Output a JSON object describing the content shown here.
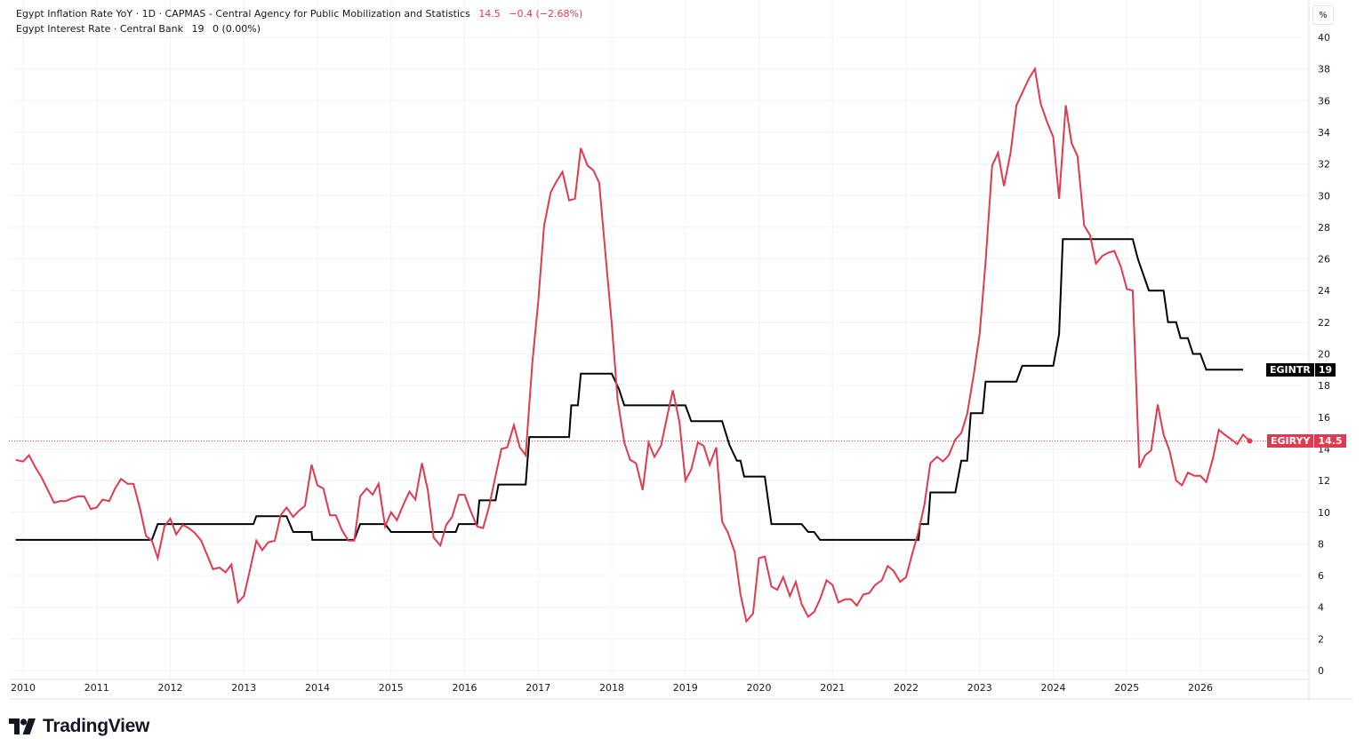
{
  "legend": {
    "inflation": {
      "title": "Egypt Inflation Rate YoY · 1D · CAPMAS - Central Agency for Public Mobilization and Statistics",
      "value": "14.5",
      "change": "−0.4 (−2.68%)"
    },
    "interest": {
      "title": "Egypt Interest Rate · Central Bank",
      "value": "19",
      "change": "0 (0.00%)"
    }
  },
  "unit_label": "%",
  "badges": {
    "interest": {
      "ticker": "EGINTR",
      "value": "19"
    },
    "inflation": {
      "ticker": "EGIRYY",
      "value": "14.5"
    }
  },
  "brand": {
    "name": "TradingView"
  },
  "colors": {
    "inflation": "#e03a4e",
    "interest": "#000000",
    "grid": "#f0f3fa",
    "axis_text": "#131722"
  },
  "chart_data": {
    "type": "line",
    "xlabel": "",
    "ylabel": "",
    "ylim": [
      0,
      40
    ],
    "xlim": [
      2009.9,
      2027.2
    ],
    "y_ticks": [
      "0",
      "2",
      "4",
      "6",
      "8",
      "10",
      "12",
      "14",
      "16",
      "18",
      "20",
      "22",
      "24",
      "26",
      "28",
      "30",
      "32",
      "34",
      "36",
      "38",
      "40"
    ],
    "x_ticks": [
      "2010",
      "2011",
      "2012",
      "2013",
      "2014",
      "2015",
      "2016",
      "2017",
      "2018",
      "2019",
      "2020",
      "2021",
      "2022",
      "2023",
      "2024",
      "2025",
      "2026"
    ],
    "grid": true,
    "series": [
      {
        "name": "EGIRYY",
        "step": false,
        "points": [
          [
            2009.9,
            13.3
          ],
          [
            2010.0,
            13.2
          ],
          [
            2010.08,
            13.6
          ],
          [
            2010.17,
            12.8
          ],
          [
            2010.25,
            12.2
          ],
          [
            2010.42,
            10.6
          ],
          [
            2010.5,
            10.7
          ],
          [
            2010.58,
            10.7
          ],
          [
            2010.67,
            10.9
          ],
          [
            2010.75,
            11.0
          ],
          [
            2010.83,
            11.0
          ],
          [
            2010.92,
            10.2
          ],
          [
            2011.0,
            10.3
          ],
          [
            2011.08,
            10.8
          ],
          [
            2011.17,
            10.7
          ],
          [
            2011.25,
            11.5
          ],
          [
            2011.33,
            12.1
          ],
          [
            2011.42,
            11.8
          ],
          [
            2011.5,
            11.8
          ],
          [
            2011.58,
            10.4
          ],
          [
            2011.67,
            8.5
          ],
          [
            2011.75,
            8.2
          ],
          [
            2011.83,
            7.1
          ],
          [
            2011.92,
            9.1
          ],
          [
            2012.0,
            9.6
          ],
          [
            2012.08,
            8.6
          ],
          [
            2012.17,
            9.2
          ],
          [
            2012.25,
            9.0
          ],
          [
            2012.33,
            8.7
          ],
          [
            2012.42,
            8.2
          ],
          [
            2012.5,
            7.3
          ],
          [
            2012.58,
            6.4
          ],
          [
            2012.67,
            6.5
          ],
          [
            2012.75,
            6.2
          ],
          [
            2012.83,
            6.7
          ],
          [
            2012.92,
            4.3
          ],
          [
            2013.0,
            4.7
          ],
          [
            2013.08,
            6.3
          ],
          [
            2013.17,
            8.2
          ],
          [
            2013.25,
            7.6
          ],
          [
            2013.33,
            8.1
          ],
          [
            2013.42,
            8.2
          ],
          [
            2013.5,
            9.8
          ],
          [
            2013.58,
            10.3
          ],
          [
            2013.67,
            9.7
          ],
          [
            2013.75,
            10.1
          ],
          [
            2013.83,
            10.4
          ],
          [
            2013.92,
            13.0
          ],
          [
            2014.0,
            11.7
          ],
          [
            2014.08,
            11.5
          ],
          [
            2014.17,
            9.8
          ],
          [
            2014.25,
            9.8
          ],
          [
            2014.33,
            8.9
          ],
          [
            2014.42,
            8.2
          ],
          [
            2014.5,
            8.2
          ],
          [
            2014.58,
            11.0
          ],
          [
            2014.67,
            11.5
          ],
          [
            2014.75,
            11.1
          ],
          [
            2014.83,
            11.8
          ],
          [
            2014.92,
            9.1
          ],
          [
            2015.0,
            10.0
          ],
          [
            2015.08,
            9.5
          ],
          [
            2015.17,
            10.5
          ],
          [
            2015.25,
            11.3
          ],
          [
            2015.33,
            10.8
          ],
          [
            2015.42,
            13.1
          ],
          [
            2015.5,
            11.4
          ],
          [
            2015.58,
            8.4
          ],
          [
            2015.67,
            7.9
          ],
          [
            2015.75,
            9.2
          ],
          [
            2015.83,
            9.7
          ],
          [
            2015.92,
            11.1
          ],
          [
            2016.0,
            11.1
          ],
          [
            2016.08,
            10.1
          ],
          [
            2016.17,
            9.1
          ],
          [
            2016.25,
            9.0
          ],
          [
            2016.33,
            10.3
          ],
          [
            2016.42,
            12.3
          ],
          [
            2016.5,
            14.0
          ],
          [
            2016.58,
            14.1
          ],
          [
            2016.67,
            15.5
          ],
          [
            2016.75,
            14.1
          ],
          [
            2016.83,
            13.6
          ],
          [
            2016.92,
            19.4
          ],
          [
            2017.0,
            23.3
          ],
          [
            2017.08,
            28.1
          ],
          [
            2017.17,
            30.2
          ],
          [
            2017.25,
            30.9
          ],
          [
            2017.33,
            31.5
          ],
          [
            2017.42,
            29.7
          ],
          [
            2017.5,
            29.8
          ],
          [
            2017.58,
            33.0
          ],
          [
            2017.67,
            31.9
          ],
          [
            2017.75,
            31.6
          ],
          [
            2017.83,
            30.8
          ],
          [
            2017.92,
            26.0
          ],
          [
            2018.0,
            21.9
          ],
          [
            2018.08,
            17.1
          ],
          [
            2018.17,
            14.4
          ],
          [
            2018.25,
            13.3
          ],
          [
            2018.33,
            13.1
          ],
          [
            2018.42,
            11.4
          ],
          [
            2018.5,
            14.4
          ],
          [
            2018.58,
            13.5
          ],
          [
            2018.67,
            14.2
          ],
          [
            2018.75,
            16.0
          ],
          [
            2018.83,
            17.7
          ],
          [
            2018.92,
            15.7
          ],
          [
            2019.0,
            12.0
          ],
          [
            2019.08,
            12.7
          ],
          [
            2019.17,
            14.4
          ],
          [
            2019.25,
            14.2
          ],
          [
            2019.33,
            13.0
          ],
          [
            2019.42,
            14.1
          ],
          [
            2019.5,
            9.4
          ],
          [
            2019.58,
            8.7
          ],
          [
            2019.67,
            7.5
          ],
          [
            2019.75,
            4.8
          ],
          [
            2019.83,
            3.1
          ],
          [
            2019.92,
            3.6
          ],
          [
            2020.0,
            7.1
          ],
          [
            2020.08,
            7.2
          ],
          [
            2020.17,
            5.3
          ],
          [
            2020.25,
            5.1
          ],
          [
            2020.33,
            5.9
          ],
          [
            2020.42,
            4.7
          ],
          [
            2020.5,
            5.6
          ],
          [
            2020.58,
            4.2
          ],
          [
            2020.67,
            3.4
          ],
          [
            2020.75,
            3.7
          ],
          [
            2020.83,
            4.5
          ],
          [
            2020.92,
            5.7
          ],
          [
            2021.0,
            5.4
          ],
          [
            2021.08,
            4.3
          ],
          [
            2021.17,
            4.5
          ],
          [
            2021.25,
            4.5
          ],
          [
            2021.33,
            4.1
          ],
          [
            2021.42,
            4.8
          ],
          [
            2021.5,
            4.9
          ],
          [
            2021.58,
            5.4
          ],
          [
            2021.67,
            5.7
          ],
          [
            2021.75,
            6.6
          ],
          [
            2021.83,
            6.3
          ],
          [
            2021.92,
            5.6
          ],
          [
            2022.0,
            5.9
          ],
          [
            2022.08,
            7.3
          ],
          [
            2022.17,
            8.8
          ],
          [
            2022.25,
            10.5
          ],
          [
            2022.33,
            13.1
          ],
          [
            2022.42,
            13.5
          ],
          [
            2022.5,
            13.2
          ],
          [
            2022.58,
            13.6
          ],
          [
            2022.67,
            14.6
          ],
          [
            2022.75,
            15.0
          ],
          [
            2022.83,
            16.2
          ],
          [
            2022.92,
            18.7
          ],
          [
            2023.0,
            21.3
          ],
          [
            2023.08,
            25.8
          ],
          [
            2023.17,
            31.9
          ],
          [
            2023.25,
            32.7
          ],
          [
            2023.33,
            30.6
          ],
          [
            2023.42,
            32.7
          ],
          [
            2023.5,
            35.7
          ],
          [
            2023.58,
            36.5
          ],
          [
            2023.67,
            37.4
          ],
          [
            2023.75,
            38.0
          ],
          [
            2023.83,
            35.8
          ],
          [
            2023.92,
            34.6
          ],
          [
            2024.0,
            33.7
          ],
          [
            2024.08,
            29.8
          ],
          [
            2024.17,
            35.7
          ],
          [
            2024.25,
            33.3
          ],
          [
            2024.33,
            32.5
          ],
          [
            2024.42,
            28.1
          ],
          [
            2024.5,
            27.5
          ],
          [
            2024.58,
            25.7
          ],
          [
            2024.67,
            26.2
          ],
          [
            2024.75,
            26.4
          ],
          [
            2024.83,
            26.5
          ],
          [
            2024.92,
            25.5
          ],
          [
            2025.0,
            24.1
          ],
          [
            2025.08,
            24.0
          ],
          [
            2025.17,
            12.8
          ],
          [
            2025.25,
            13.6
          ],
          [
            2025.33,
            13.9
          ],
          [
            2025.42,
            16.8
          ],
          [
            2025.5,
            14.9
          ],
          [
            2025.58,
            13.9
          ],
          [
            2025.67,
            12.0
          ],
          [
            2025.75,
            11.7
          ],
          [
            2025.83,
            12.5
          ],
          [
            2025.92,
            12.3
          ],
          [
            2026.0,
            12.3
          ],
          [
            2026.08,
            11.9
          ],
          [
            2026.17,
            13.4
          ],
          [
            2026.25,
            15.2
          ],
          [
            2026.33,
            14.9
          ],
          [
            2026.42,
            14.6
          ],
          [
            2026.5,
            14.3
          ],
          [
            2026.58,
            14.9
          ],
          [
            2026.67,
            14.5
          ]
        ]
      },
      {
        "name": "EGINTR",
        "step": true,
        "points": [
          [
            2009.9,
            8.25
          ],
          [
            2011.75,
            8.25
          ],
          [
            2011.83,
            9.25
          ],
          [
            2013.13,
            9.25
          ],
          [
            2013.17,
            9.75
          ],
          [
            2013.58,
            9.75
          ],
          [
            2013.67,
            8.75
          ],
          [
            2013.92,
            8.75
          ],
          [
            2013.93,
            8.25
          ],
          [
            2014.5,
            8.25
          ],
          [
            2014.58,
            9.25
          ],
          [
            2014.92,
            9.25
          ],
          [
            2015.0,
            8.75
          ],
          [
            2015.88,
            8.75
          ],
          [
            2015.92,
            9.25
          ],
          [
            2016.17,
            9.25
          ],
          [
            2016.2,
            10.75
          ],
          [
            2016.42,
            10.75
          ],
          [
            2016.46,
            11.75
          ],
          [
            2016.83,
            11.75
          ],
          [
            2016.88,
            14.75
          ],
          [
            2017.42,
            14.75
          ],
          [
            2017.45,
            16.75
          ],
          [
            2017.54,
            16.75
          ],
          [
            2017.58,
            18.75
          ],
          [
            2018.0,
            18.75
          ],
          [
            2018.1,
            17.75
          ],
          [
            2018.17,
            16.75
          ],
          [
            2018.75,
            16.75
          ],
          [
            2019.0,
            16.75
          ],
          [
            2019.08,
            15.75
          ],
          [
            2019.5,
            15.75
          ],
          [
            2019.6,
            14.25
          ],
          [
            2019.7,
            13.25
          ],
          [
            2019.75,
            13.25
          ],
          [
            2019.8,
            12.25
          ],
          [
            2020.08,
            12.25
          ],
          [
            2020.17,
            9.25
          ],
          [
            2020.58,
            9.25
          ],
          [
            2020.67,
            8.75
          ],
          [
            2020.75,
            8.75
          ],
          [
            2020.83,
            8.25
          ],
          [
            2022.0,
            8.25
          ],
          [
            2022.17,
            8.25
          ],
          [
            2022.19,
            9.25
          ],
          [
            2022.3,
            9.25
          ],
          [
            2022.33,
            11.25
          ],
          [
            2022.67,
            11.25
          ],
          [
            2022.75,
            13.25
          ],
          [
            2022.83,
            13.25
          ],
          [
            2022.88,
            16.25
          ],
          [
            2023.04,
            16.25
          ],
          [
            2023.08,
            18.25
          ],
          [
            2023.5,
            18.25
          ],
          [
            2023.58,
            19.25
          ],
          [
            2024.0,
            19.25
          ],
          [
            2024.08,
            21.25
          ],
          [
            2024.13,
            27.25
          ],
          [
            2025.08,
            27.25
          ],
          [
            2025.15,
            26.0
          ],
          [
            2025.3,
            24.0
          ],
          [
            2025.5,
            24.0
          ],
          [
            2025.56,
            22.0
          ],
          [
            2025.67,
            22.0
          ],
          [
            2025.73,
            21.0
          ],
          [
            2025.83,
            21.0
          ],
          [
            2025.9,
            20.0
          ],
          [
            2026.0,
            20.0
          ],
          [
            2026.08,
            19.0
          ],
          [
            2026.58,
            19.0
          ]
        ]
      }
    ],
    "last_value_line": 14.5
  }
}
